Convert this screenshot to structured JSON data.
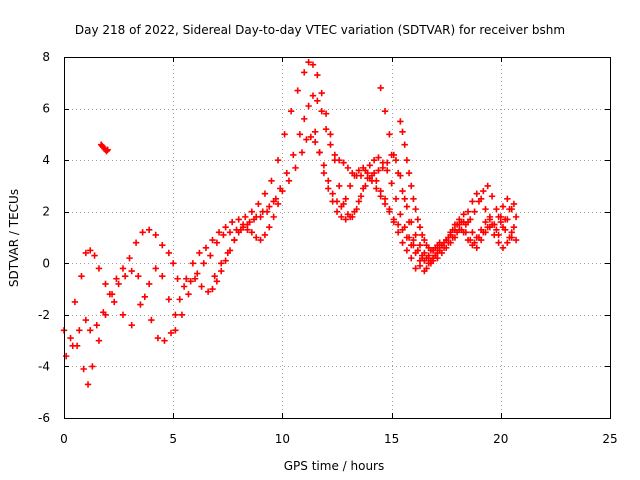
{
  "chart_data": {
    "type": "scatter",
    "title": "Day 218 of 2022, Sidereal Day-to-day VTEC variation (SDTVAR) for receiver bshm",
    "xlabel": "GPS time / hours",
    "ylabel": "SDTVAR / TECUs",
    "xlim": [
      0,
      25
    ],
    "ylim": [
      -6,
      8
    ],
    "xticks": [
      "0",
      "5",
      "10",
      "15",
      "20",
      "25"
    ],
    "yticks": [
      "-6",
      "-4",
      "-2",
      "0",
      "2",
      "4",
      "6",
      "8"
    ],
    "grid": true,
    "marker": "+",
    "color": "#ff0000",
    "series": [
      {
        "name": "track-1",
        "x": [
          0.0,
          0.3,
          0.6,
          0.9,
          1.1,
          1.3,
          1.6,
          1.9,
          2.2,
          2.5,
          2.8,
          3.1,
          3.4,
          3.7,
          4.0,
          4.3,
          4.6,
          4.9,
          5.1,
          5.3,
          5.6,
          5.9,
          6.2,
          6.5,
          6.8,
          7.1,
          7.4,
          7.7,
          8.0,
          8.3,
          8.6,
          8.9,
          9.2,
          9.5,
          9.8,
          10.1,
          10.4,
          10.7,
          11.0,
          11.2,
          11.4,
          11.6,
          11.8,
          12.0,
          12.2,
          12.4,
          12.6,
          12.8,
          13.0,
          13.2,
          13.4,
          13.6,
          13.8,
          14.0,
          14.2,
          14.4,
          14.6,
          14.8,
          15.0,
          15.2,
          15.4,
          15.6,
          15.8,
          16.0,
          16.2,
          16.4,
          16.6,
          16.8,
          17.0,
          17.2,
          17.4,
          17.6,
          17.8,
          18.0,
          18.2,
          18.4,
          18.6,
          18.8,
          19.0,
          19.2,
          19.4,
          19.6,
          19.8,
          20.0,
          20.2,
          20.4,
          20.6
        ],
        "y": [
          -2.6,
          -2.9,
          -3.2,
          -4.1,
          -4.7,
          -4.0,
          -3.0,
          -2.0,
          -1.2,
          -0.8,
          -0.5,
          -0.3,
          -0.5,
          -1.3,
          -2.2,
          -2.9,
          -3.0,
          -2.7,
          -2.0,
          -1.4,
          -0.6,
          0.0,
          0.4,
          0.6,
          0.9,
          1.2,
          1.4,
          1.6,
          1.7,
          1.8,
          2.0,
          2.3,
          2.7,
          3.2,
          4.0,
          5.0,
          5.9,
          6.7,
          7.4,
          7.8,
          7.7,
          7.3,
          6.6,
          5.8,
          5.0,
          4.0,
          3.0,
          2.3,
          1.9,
          1.8,
          2.1,
          2.6,
          3.0,
          3.3,
          3.5,
          3.6,
          3.7,
          3.9,
          4.2,
          4.0,
          3.4,
          2.5,
          1.6,
          0.9,
          0.5,
          0.2,
          -0.2,
          0.0,
          0.3,
          0.6,
          0.8,
          1.0,
          1.3,
          1.5,
          1.6,
          1.2,
          0.9,
          0.8,
          1.0,
          1.2,
          1.4,
          1.5,
          1.3,
          1.6,
          1.3,
          1.0,
          1.4
        ]
      },
      {
        "name": "track-2",
        "x": [
          0.1,
          0.4,
          0.7,
          1.0,
          1.2,
          1.5,
          1.8,
          2.1,
          2.4,
          2.7,
          3.0,
          3.3,
          3.6,
          3.9,
          4.2,
          4.5,
          4.8,
          5.0,
          5.2,
          5.5,
          5.8,
          6.1,
          6.4,
          6.7,
          7.0,
          7.3,
          7.6,
          7.9,
          8.2,
          8.5,
          8.8,
          9.1,
          9.4,
          9.7,
          10.0,
          10.3,
          10.6,
          10.9,
          11.1,
          11.3,
          11.5,
          11.7,
          11.9,
          12.1,
          12.3,
          12.5,
          12.7,
          12.9,
          13.1,
          13.3,
          13.5,
          13.7,
          13.9,
          14.1,
          14.3,
          14.5,
          14.7,
          14.9,
          15.1,
          15.3,
          15.5,
          15.7,
          15.9,
          16.1,
          16.3,
          16.5,
          16.7,
          16.9,
          17.1,
          17.3,
          17.5,
          17.7,
          17.9,
          18.1,
          18.3,
          18.5,
          18.7,
          18.9,
          19.1,
          19.3,
          19.5,
          19.7,
          19.9,
          20.1,
          20.3,
          20.5,
          20.7
        ],
        "y": [
          -3.6,
          -3.2,
          -2.6,
          -2.2,
          -2.6,
          -2.4,
          -1.9,
          -1.2,
          -0.6,
          -0.2,
          0.2,
          0.8,
          1.2,
          1.3,
          1.1,
          0.7,
          0.4,
          0.0,
          -0.6,
          -0.9,
          -0.7,
          -0.4,
          0.0,
          0.3,
          0.8,
          1.1,
          1.2,
          1.3,
          1.5,
          1.6,
          1.8,
          2.0,
          2.2,
          2.5,
          2.8,
          3.2,
          3.7,
          4.3,
          4.8,
          4.9,
          4.7,
          4.3,
          3.8,
          3.2,
          2.7,
          2.4,
          2.2,
          2.5,
          3.0,
          3.4,
          3.6,
          3.7,
          3.5,
          3.2,
          2.9,
          2.6,
          2.3,
          2.0,
          1.7,
          1.5,
          1.3,
          1.0,
          0.7,
          0.4,
          0.1,
          -0.3,
          0.0,
          0.2,
          0.4,
          0.7,
          0.9,
          1.2,
          1.5,
          1.7,
          1.9,
          1.6,
          1.2,
          1.0,
          1.3,
          1.6,
          1.8,
          1.5,
          1.1,
          1.4,
          1.7,
          1.2,
          0.9
        ]
      },
      {
        "name": "track-3",
        "x": [
          0.5,
          0.8,
          1.0,
          1.2,
          1.4,
          1.6,
          1.9,
          2.3,
          2.7,
          3.1,
          3.5,
          3.9,
          4.2,
          4.5,
          4.8,
          5.1,
          5.4,
          5.7,
          6.0,
          6.3,
          6.6,
          6.9,
          7.2,
          7.5,
          7.8,
          8.1,
          8.4,
          8.7,
          9.0,
          9.3,
          9.6,
          9.9,
          10.2,
          10.5,
          10.8,
          11.0,
          11.2,
          11.4,
          11.6,
          11.8,
          12.0,
          12.2,
          12.4,
          12.6,
          12.8,
          13.0,
          13.2,
          13.4,
          13.6,
          13.8,
          14.0,
          14.2,
          14.4,
          14.6,
          14.8,
          15.0,
          15.2,
          15.4,
          15.6,
          15.8,
          16.0,
          16.2,
          16.4,
          16.6,
          16.8,
          17.0,
          17.2,
          17.4,
          17.6,
          17.8,
          18.0,
          18.2,
          18.4,
          18.6,
          18.8,
          19.0,
          19.2,
          19.4,
          19.6,
          19.8,
          20.0,
          20.2,
          20.4,
          20.6
        ],
        "y": [
          -1.5,
          -0.5,
          0.4,
          0.5,
          0.3,
          -0.2,
          -0.8,
          -1.5,
          -2.0,
          -2.4,
          -1.6,
          -0.8,
          -0.2,
          -0.5,
          -1.4,
          -2.6,
          -2.0,
          -1.2,
          -0.6,
          -0.9,
          -1.1,
          -0.5,
          0.0,
          0.4,
          0.9,
          1.3,
          1.5,
          1.7,
          1.8,
          2.0,
          2.4,
          2.9,
          3.5,
          4.2,
          5.0,
          5.6,
          6.1,
          6.5,
          6.3,
          5.9,
          5.2,
          4.6,
          4.2,
          4.0,
          3.9,
          3.7,
          3.5,
          3.4,
          3.4,
          3.6,
          3.8,
          4.0,
          4.1,
          3.9,
          3.6,
          3.1,
          2.5,
          1.9,
          1.4,
          1.0,
          0.7,
          0.5,
          0.3,
          0.2,
          0.1,
          0.3,
          0.5,
          0.6,
          0.8,
          1.0,
          1.2,
          1.3,
          1.5,
          1.7,
          2.0,
          2.4,
          2.8,
          3.0,
          2.6,
          2.1,
          1.8,
          1.7,
          2.1,
          2.3
        ]
      },
      {
        "name": "track-4",
        "x": [
          11.5,
          11.7,
          11.9,
          12.1,
          12.3,
          12.5,
          12.7,
          12.9,
          13.1,
          13.3,
          13.5,
          13.7,
          13.9,
          14.1,
          14.3,
          14.5,
          14.7,
          14.9,
          15.1,
          15.3,
          15.5,
          15.7,
          15.9,
          16.1,
          16.3,
          16.5,
          16.7,
          16.9,
          17.1,
          17.3,
          17.5,
          17.7,
          17.9,
          18.1,
          18.3,
          18.5,
          18.7,
          18.9,
          19.1,
          19.3,
          19.5,
          19.7,
          19.9,
          20.1,
          20.3,
          20.5
        ],
        "y": [
          5.1,
          4.3,
          3.5,
          2.9,
          2.4,
          2.0,
          1.8,
          1.7,
          1.8,
          2.0,
          2.4,
          2.9,
          3.3,
          3.4,
          3.2,
          2.8,
          2.5,
          2.1,
          1.6,
          1.2,
          0.8,
          0.5,
          0.2,
          -0.2,
          -0.1,
          0.1,
          0.3,
          0.5,
          0.6,
          0.7,
          0.9,
          1.1,
          1.3,
          1.5,
          1.2,
          0.9,
          0.7,
          0.6,
          0.9,
          1.2,
          1.4,
          1.1,
          0.8,
          0.6,
          0.8,
          1.0
        ]
      },
      {
        "name": "track-5",
        "x": [
          14.5,
          14.7,
          14.9,
          15.1,
          15.3,
          15.5,
          15.7,
          15.9,
          16.1,
          16.3,
          16.5,
          16.7,
          16.9,
          17.1,
          17.3,
          17.5,
          17.7,
          17.9,
          18.1,
          18.3,
          18.5,
          18.7,
          18.9,
          19.1,
          19.3,
          19.5,
          19.7,
          19.9,
          20.1,
          20.3,
          20.5,
          20.7
        ],
        "y": [
          6.8,
          5.9,
          5.0,
          4.2,
          3.5,
          2.8,
          2.2,
          1.6,
          1.1,
          0.7,
          0.4,
          0.2,
          0.1,
          0.2,
          0.4,
          0.6,
          0.8,
          1.0,
          1.3,
          1.6,
          2.0,
          2.4,
          2.7,
          2.5,
          2.1,
          1.7,
          1.5,
          1.8,
          2.2,
          2.5,
          2.1,
          1.8
        ]
      },
      {
        "name": "track-6",
        "x": [
          15.4,
          15.5,
          15.6,
          15.7,
          15.8,
          15.9,
          16.0,
          16.1,
          16.2,
          16.3,
          16.4,
          16.5,
          16.6,
          16.7,
          16.8,
          16.9,
          17.0,
          17.1,
          17.2
        ],
        "y": [
          5.5,
          5.1,
          4.6,
          4.0,
          3.5,
          3.0,
          2.5,
          2.1,
          1.7,
          1.4,
          1.1,
          0.9,
          0.7,
          0.6,
          0.5,
          0.5,
          0.6,
          0.7,
          0.8
        ]
      },
      {
        "name": "track-7",
        "x": [
          1.7,
          1.75,
          1.8,
          1.85,
          1.9,
          1.95,
          2.0
        ],
        "y": [
          4.6,
          4.55,
          4.5,
          4.45,
          4.4,
          4.35,
          4.4
        ]
      },
      {
        "name": "track-8",
        "x": [
          6.8,
          7.0,
          7.2,
          7.4,
          7.6,
          7.8,
          8.0,
          8.2,
          8.4,
          8.6,
          8.8,
          9.0,
          9.2,
          9.4,
          9.6,
          9.8
        ],
        "y": [
          -1.0,
          -0.7,
          -0.3,
          0.1,
          0.5,
          0.9,
          1.2,
          1.4,
          1.3,
          1.2,
          1.0,
          0.9,
          1.1,
          1.4,
          1.8,
          2.3
        ]
      }
    ]
  }
}
